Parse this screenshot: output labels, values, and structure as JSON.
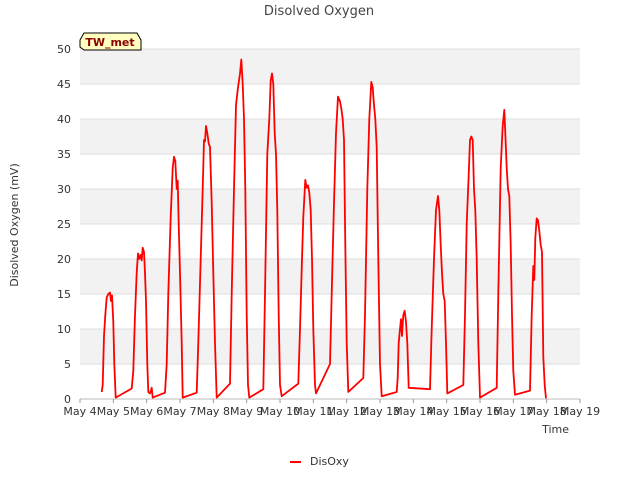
{
  "colors": {
    "series": "#ff0000",
    "band": "#f2f2f2",
    "gridline": "#dddddd",
    "badge_bg": "#ffffc0",
    "badge_text": "#8b0000"
  },
  "badge": {
    "label": "TW_met"
  },
  "chart_data": {
    "type": "line",
    "title": "Disolved Oxygen",
    "xlabel": "Time",
    "ylabel": "Disolved Oxygen (mV)",
    "ylim": [
      0,
      50
    ],
    "xlim": [
      4,
      19
    ],
    "x_ticks": [
      {
        "value": 4,
        "label": "May 4"
      },
      {
        "value": 5,
        "label": "May 5"
      },
      {
        "value": 6,
        "label": "May 6"
      },
      {
        "value": 7,
        "label": "May 7"
      },
      {
        "value": 8,
        "label": "May 8"
      },
      {
        "value": 9,
        "label": "May 9"
      },
      {
        "value": 10,
        "label": "May 10"
      },
      {
        "value": 11,
        "label": "May 11"
      },
      {
        "value": 12,
        "label": "May 12"
      },
      {
        "value": 13,
        "label": "May 13"
      },
      {
        "value": 14,
        "label": "May 14"
      },
      {
        "value": 15,
        "label": "May 15"
      },
      {
        "value": 16,
        "label": "May 16"
      },
      {
        "value": 17,
        "label": "May 17"
      },
      {
        "value": 18,
        "label": "May 18"
      },
      {
        "value": 19,
        "label": "May 19"
      }
    ],
    "y_ticks": [
      0,
      5,
      10,
      15,
      20,
      25,
      30,
      35,
      40,
      45,
      50
    ],
    "grid": true,
    "legend": "bottom-center",
    "series": [
      {
        "name": "DisOxy",
        "points": [
          [
            4.65,
            1.0
          ],
          [
            4.68,
            2.0
          ],
          [
            4.72,
            9.0
          ],
          [
            4.76,
            12.0
          ],
          [
            4.8,
            14.5
          ],
          [
            4.85,
            15.0
          ],
          [
            4.9,
            15.2
          ],
          [
            4.93,
            14.0
          ],
          [
            4.96,
            14.8
          ],
          [
            5.0,
            11.0
          ],
          [
            5.03,
            5.0
          ],
          [
            5.07,
            0.2
          ],
          [
            5.55,
            1.5
          ],
          [
            5.6,
            4.0
          ],
          [
            5.65,
            12.0
          ],
          [
            5.7,
            18.0
          ],
          [
            5.74,
            20.8
          ],
          [
            5.78,
            20.0
          ],
          [
            5.82,
            20.6
          ],
          [
            5.85,
            19.8
          ],
          [
            5.88,
            21.6
          ],
          [
            5.92,
            21.0
          ],
          [
            5.95,
            18.0
          ],
          [
            5.98,
            14.0
          ],
          [
            6.02,
            5.0
          ],
          [
            6.05,
            1.0
          ],
          [
            6.1,
            0.8
          ],
          [
            6.13,
            1.2
          ],
          [
            6.15,
            1.6
          ],
          [
            6.18,
            0.2
          ],
          [
            6.55,
            0.9
          ],
          [
            6.6,
            5.0
          ],
          [
            6.65,
            15.0
          ],
          [
            6.72,
            26.0
          ],
          [
            6.78,
            33.0
          ],
          [
            6.82,
            34.6
          ],
          [
            6.86,
            34.0
          ],
          [
            6.9,
            30.0
          ],
          [
            6.93,
            31.2
          ],
          [
            6.96,
            25.0
          ],
          [
            7.0,
            18.0
          ],
          [
            7.05,
            8.0
          ],
          [
            7.08,
            0.2
          ],
          [
            7.5,
            0.9
          ],
          [
            7.55,
            8.0
          ],
          [
            7.62,
            20.0
          ],
          [
            7.68,
            30.0
          ],
          [
            7.72,
            37.0
          ],
          [
            7.75,
            36.8
          ],
          [
            7.78,
            39.0
          ],
          [
            7.82,
            38.0
          ],
          [
            7.86,
            36.5
          ],
          [
            7.9,
            36.0
          ],
          [
            7.95,
            28.0
          ],
          [
            8.0,
            18.0
          ],
          [
            8.05,
            8.0
          ],
          [
            8.1,
            0.2
          ],
          [
            8.5,
            2.2
          ],
          [
            8.55,
            15.0
          ],
          [
            8.62,
            30.0
          ],
          [
            8.68,
            42.0
          ],
          [
            8.74,
            44.5
          ],
          [
            8.8,
            46.5
          ],
          [
            8.84,
            48.5
          ],
          [
            8.88,
            45.0
          ],
          [
            8.92,
            40.0
          ],
          [
            8.96,
            30.0
          ],
          [
            9.0,
            12.0
          ],
          [
            9.04,
            2.0
          ],
          [
            9.08,
            0.2
          ],
          [
            9.5,
            1.4
          ],
          [
            9.55,
            15.0
          ],
          [
            9.62,
            35.0
          ],
          [
            9.68,
            40.0
          ],
          [
            9.72,
            45.5
          ],
          [
            9.76,
            46.5
          ],
          [
            9.8,
            45.0
          ],
          [
            9.84,
            38.0
          ],
          [
            9.88,
            35.0
          ],
          [
            9.92,
            27.0
          ],
          [
            9.96,
            12.0
          ],
          [
            10.0,
            2.0
          ],
          [
            10.05,
            0.4
          ],
          [
            10.55,
            2.2
          ],
          [
            10.6,
            10.0
          ],
          [
            10.66,
            20.0
          ],
          [
            10.7,
            26.0
          ],
          [
            10.76,
            31.3
          ],
          [
            10.8,
            30.2
          ],
          [
            10.84,
            30.5
          ],
          [
            10.88,
            29.5
          ],
          [
            10.92,
            27.0
          ],
          [
            10.96,
            20.0
          ],
          [
            11.0,
            10.0
          ],
          [
            11.05,
            2.0
          ],
          [
            11.08,
            0.8
          ],
          [
            11.5,
            5.0
          ],
          [
            11.55,
            15.0
          ],
          [
            11.62,
            28.0
          ],
          [
            11.68,
            38.0
          ],
          [
            11.74,
            43.2
          ],
          [
            11.8,
            42.5
          ],
          [
            11.84,
            41.5
          ],
          [
            11.88,
            40.0
          ],
          [
            11.92,
            37.0
          ],
          [
            11.96,
            22.0
          ],
          [
            12.0,
            8.0
          ],
          [
            12.05,
            1.0
          ],
          [
            12.5,
            3.0
          ],
          [
            12.55,
            12.0
          ],
          [
            12.62,
            30.0
          ],
          [
            12.68,
            40.0
          ],
          [
            12.74,
            45.3
          ],
          [
            12.78,
            44.5
          ],
          [
            12.82,
            42.0
          ],
          [
            12.86,
            40.0
          ],
          [
            12.9,
            36.0
          ],
          [
            12.95,
            20.0
          ],
          [
            13.0,
            5.0
          ],
          [
            13.05,
            0.4
          ],
          [
            13.5,
            1.0
          ],
          [
            13.53,
            3.0
          ],
          [
            13.56,
            8.0
          ],
          [
            13.6,
            10.0
          ],
          [
            13.63,
            11.4
          ],
          [
            13.66,
            9.0
          ],
          [
            13.7,
            12.0
          ],
          [
            13.74,
            12.6
          ],
          [
            13.78,
            11.0
          ],
          [
            13.82,
            8.0
          ],
          [
            13.86,
            1.6
          ],
          [
            14.5,
            1.4
          ],
          [
            14.55,
            10.0
          ],
          [
            14.62,
            20.0
          ],
          [
            14.68,
            27.0
          ],
          [
            14.74,
            29.0
          ],
          [
            14.78,
            27.0
          ],
          [
            14.82,
            22.0
          ],
          [
            14.86,
            18.0
          ],
          [
            14.9,
            15.0
          ],
          [
            14.94,
            14.0
          ],
          [
            14.98,
            8.0
          ],
          [
            15.02,
            0.8
          ],
          [
            15.5,
            2.0
          ],
          [
            15.55,
            12.0
          ],
          [
            15.6,
            25.0
          ],
          [
            15.66,
            32.0
          ],
          [
            15.7,
            37.0
          ],
          [
            15.74,
            37.5
          ],
          [
            15.78,
            37.0
          ],
          [
            15.82,
            30.0
          ],
          [
            15.86,
            27.0
          ],
          [
            15.9,
            20.0
          ],
          [
            15.95,
            8.0
          ],
          [
            16.0,
            0.2
          ],
          [
            16.5,
            1.6
          ],
          [
            16.55,
            15.0
          ],
          [
            16.62,
            33.0
          ],
          [
            16.68,
            39.0
          ],
          [
            16.73,
            41.3
          ],
          [
            16.76,
            38.0
          ],
          [
            16.8,
            33.0
          ],
          [
            16.84,
            30.0
          ],
          [
            16.88,
            29.0
          ],
          [
            16.92,
            22.0
          ],
          [
            16.96,
            12.0
          ],
          [
            17.0,
            4.0
          ],
          [
            17.05,
            0.6
          ],
          [
            17.5,
            1.2
          ],
          [
            17.55,
            12.0
          ],
          [
            17.6,
            19.0
          ],
          [
            17.63,
            17.0
          ],
          [
            17.66,
            23.0
          ],
          [
            17.7,
            25.8
          ],
          [
            17.74,
            25.5
          ],
          [
            17.78,
            24.0
          ],
          [
            17.82,
            22.0
          ],
          [
            17.86,
            21.0
          ],
          [
            17.9,
            6.0
          ],
          [
            17.94,
            2.0
          ],
          [
            17.98,
            0.1
          ]
        ]
      }
    ]
  }
}
